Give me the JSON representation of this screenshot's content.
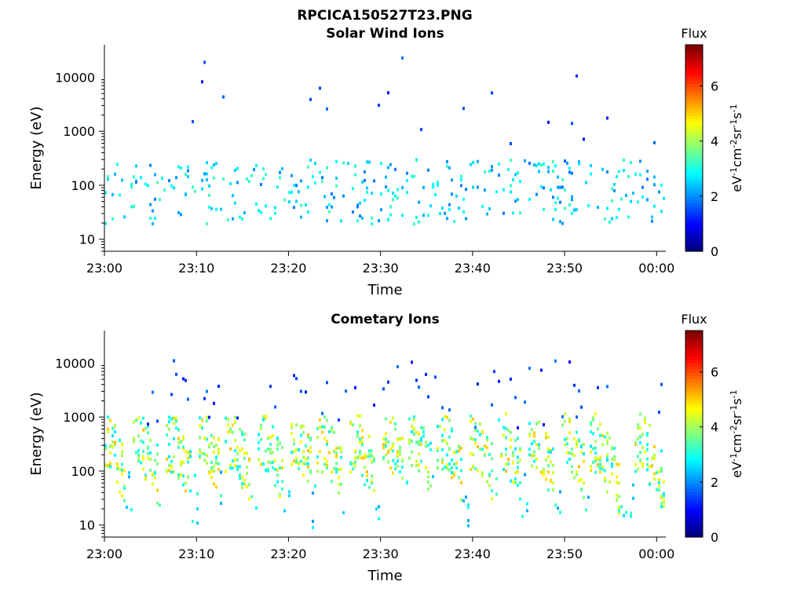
{
  "figure": {
    "title": "RPCICA150527T23.PNG"
  },
  "chart_data": [
    {
      "type": "heatmap",
      "title": "Solar Wind Ions",
      "xlabel": "Time",
      "ylabel": "Energy (eV)",
      "x_ticks": [
        "23:00",
        "23:10",
        "23:20",
        "23:30",
        "23:40",
        "23:50",
        "00:00"
      ],
      "y_ticks": [
        "10",
        "100",
        "1000",
        "10000"
      ],
      "y_scale": "log",
      "ylim": [
        6,
        40000
      ],
      "colorbar": {
        "label": "Flux",
        "unit_label": "eV-1cm-2sr-1s-1",
        "ticks": [
          "0",
          "2",
          "4",
          "6"
        ],
        "range": [
          0,
          7.5
        ],
        "colormap": "jet"
      },
      "description_values": {
        "time_window_minutes": [
          0,
          61
        ],
        "typical_flux": [
          1.5,
          3.5
        ],
        "dominant_energy_band_eV": [
          20,
          400
        ],
        "sparse_high_energy_band_eV": [
          400,
          40000
        ]
      }
    },
    {
      "type": "heatmap",
      "title": "Cometary Ions",
      "xlabel": "Time",
      "ylabel": "Energy (eV)",
      "x_ticks": [
        "23:00",
        "23:10",
        "23:20",
        "23:30",
        "23:40",
        "23:50",
        "00:00"
      ],
      "y_ticks": [
        "10",
        "100",
        "1000",
        "10000"
      ],
      "y_scale": "log",
      "ylim": [
        6,
        40000
      ],
      "colorbar": {
        "label": "Flux",
        "unit_label": "eV-1cm-2sr-1s-1",
        "ticks": [
          "0",
          "2",
          "4",
          "6"
        ],
        "range": [
          0,
          7.5
        ],
        "colormap": "jet"
      },
      "description_values": {
        "burst_minutes": [
          0.5,
          4,
          7.5,
          11,
          14,
          17.5,
          21,
          24,
          27.5,
          31,
          34,
          37,
          40.5,
          43.5,
          47,
          50.5,
          53.5,
          58.5
        ],
        "typical_flux": [
          2.5,
          5.5
        ],
        "dominant_energy_band_eV": [
          15,
          600
        ]
      }
    }
  ]
}
